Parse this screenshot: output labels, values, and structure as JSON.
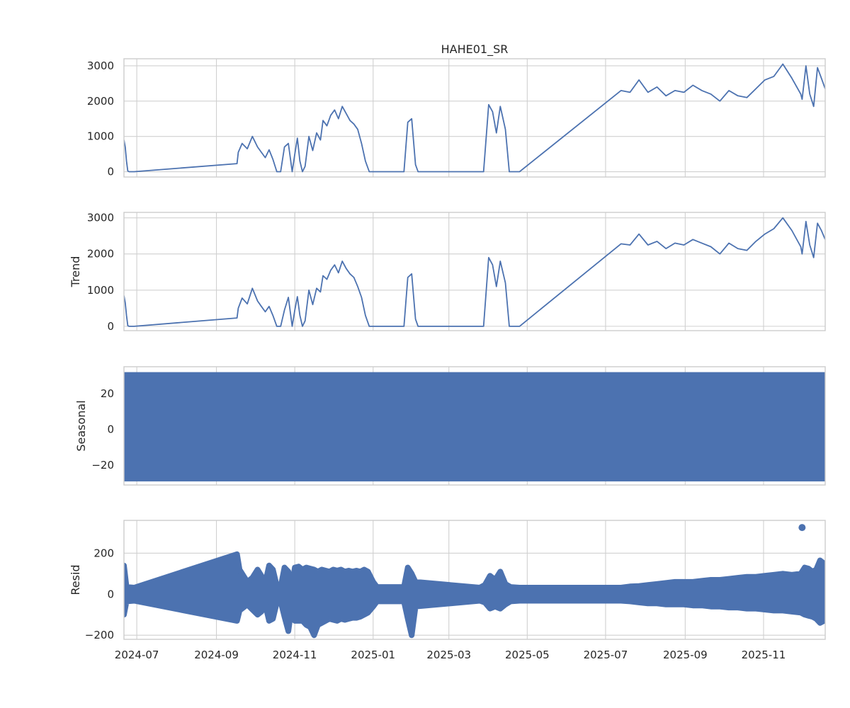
{
  "chart_data": [
    {
      "type": "line",
      "title": "HAHE01_SR",
      "ylabel": "",
      "xlim": [
        "2024-06-21",
        "2025-12-19"
      ],
      "ylim": [
        -150,
        3200
      ],
      "yticks": [
        0,
        1000,
        2000,
        3000
      ],
      "grid": true,
      "color": "#4c72b0",
      "series": [
        {
          "x": [
            "2024-06-21",
            "2024-06-22",
            "2024-06-23",
            "2024-06-24",
            "2024-06-25",
            "2024-06-29",
            "2024-09-17",
            "2024-09-18",
            "2024-09-21",
            "2024-09-25",
            "2024-09-29",
            "2024-10-03",
            "2024-10-06",
            "2024-10-09",
            "2024-10-12",
            "2024-10-15",
            "2024-10-18",
            "2024-10-21",
            "2024-10-24",
            "2024-10-27",
            "2024-10-30",
            "2024-11-01",
            "2024-11-03",
            "2024-11-05",
            "2024-11-07",
            "2024-11-09",
            "2024-11-12",
            "2024-11-15",
            "2024-11-18",
            "2024-11-21",
            "2024-11-23",
            "2024-11-26",
            "2024-11-29",
            "2024-12-02",
            "2024-12-05",
            "2024-12-08",
            "2024-12-11",
            "2024-12-14",
            "2024-12-17",
            "2024-12-20",
            "2024-12-23",
            "2024-12-26",
            "2024-12-29",
            "2025-01-01",
            "2025-01-03",
            "2025-01-05",
            "2025-01-25",
            "2025-01-28",
            "2025-01-31",
            "2025-02-03",
            "2025-02-05",
            "2025-03-25",
            "2025-03-28",
            "2025-04-01",
            "2025-04-04",
            "2025-04-07",
            "2025-04-10",
            "2025-04-14",
            "2025-04-17",
            "2025-04-25",
            "2025-07-13",
            "2025-07-20",
            "2025-07-27",
            "2025-08-03",
            "2025-08-10",
            "2025-08-17",
            "2025-08-24",
            "2025-08-31",
            "2025-09-07",
            "2025-09-14",
            "2025-09-21",
            "2025-09-28",
            "2025-10-05",
            "2025-10-12",
            "2025-10-19",
            "2025-10-26",
            "2025-11-02",
            "2025-11-09",
            "2025-11-16",
            "2025-11-23",
            "2025-11-30",
            "2025-12-01",
            "2025-12-04",
            "2025-12-07",
            "2025-12-10",
            "2025-12-13",
            "2025-12-16",
            "2025-12-19"
          ],
          "y": [
            900,
            700,
            300,
            20,
            0,
            0,
            230,
            550,
            800,
            650,
            1000,
            700,
            550,
            400,
            620,
            350,
            0,
            0,
            700,
            800,
            0,
            500,
            950,
            300,
            0,
            150,
            1000,
            600,
            1100,
            900,
            1450,
            1300,
            1600,
            1750,
            1500,
            1850,
            1650,
            1450,
            1350,
            1200,
            800,
            300,
            0,
            0,
            0,
            0,
            0,
            1400,
            1500,
            200,
            0,
            0,
            0,
            1900,
            1700,
            1100,
            1850,
            1200,
            0,
            0,
            2300,
            2250,
            2600,
            2250,
            2400,
            2150,
            2300,
            2250,
            2450,
            2300,
            2200,
            2000,
            2300,
            2150,
            2100,
            2350,
            2600,
            2700,
            3050,
            2650,
            2200,
            2050,
            3000,
            2200,
            1850,
            2950,
            2650,
            2350
          ]
        }
      ]
    },
    {
      "type": "line",
      "title": "",
      "ylabel": "Trend",
      "xlim": [
        "2024-06-21",
        "2025-12-19"
      ],
      "ylim": [
        -120,
        3150
      ],
      "yticks": [
        0,
        1000,
        2000,
        3000
      ],
      "grid": true,
      "color": "#4c72b0",
      "series": [
        {
          "x": [
            "2024-06-21",
            "2024-06-22",
            "2024-06-23",
            "2024-06-24",
            "2024-06-25",
            "2024-06-29",
            "2024-09-17",
            "2024-09-18",
            "2024-09-21",
            "2024-09-25",
            "2024-09-29",
            "2024-10-03",
            "2024-10-06",
            "2024-10-09",
            "2024-10-12",
            "2024-10-15",
            "2024-10-18",
            "2024-10-21",
            "2024-10-24",
            "2024-10-27",
            "2024-10-30",
            "2024-11-01",
            "2024-11-03",
            "2024-11-05",
            "2024-11-07",
            "2024-11-09",
            "2024-11-12",
            "2024-11-15",
            "2024-11-18",
            "2024-11-21",
            "2024-11-23",
            "2024-11-26",
            "2024-11-29",
            "2024-12-02",
            "2024-12-05",
            "2024-12-08",
            "2024-12-11",
            "2024-12-14",
            "2024-12-17",
            "2024-12-20",
            "2024-12-23",
            "2024-12-26",
            "2024-12-29",
            "2025-01-01",
            "2025-01-03",
            "2025-01-05",
            "2025-01-25",
            "2025-01-28",
            "2025-01-31",
            "2025-02-03",
            "2025-02-05",
            "2025-03-25",
            "2025-03-28",
            "2025-04-01",
            "2025-04-04",
            "2025-04-07",
            "2025-04-10",
            "2025-04-14",
            "2025-04-17",
            "2025-04-25",
            "2025-07-13",
            "2025-07-20",
            "2025-07-27",
            "2025-08-03",
            "2025-08-10",
            "2025-08-17",
            "2025-08-24",
            "2025-08-31",
            "2025-09-07",
            "2025-09-14",
            "2025-09-21",
            "2025-09-28",
            "2025-10-05",
            "2025-10-12",
            "2025-10-19",
            "2025-10-26",
            "2025-11-02",
            "2025-11-09",
            "2025-11-16",
            "2025-11-23",
            "2025-11-30",
            "2025-12-01",
            "2025-12-04",
            "2025-12-07",
            "2025-12-10",
            "2025-12-13",
            "2025-12-16",
            "2025-12-19"
          ],
          "y": [
            850,
            650,
            300,
            20,
            0,
            0,
            230,
            500,
            780,
            620,
            1050,
            700,
            550,
            400,
            550,
            300,
            0,
            0,
            450,
            800,
            0,
            450,
            820,
            300,
            0,
            150,
            1000,
            600,
            1050,
            950,
            1400,
            1300,
            1550,
            1700,
            1480,
            1800,
            1600,
            1450,
            1350,
            1100,
            800,
            300,
            0,
            0,
            0,
            0,
            0,
            1350,
            1450,
            200,
            0,
            0,
            0,
            1900,
            1700,
            1100,
            1800,
            1200,
            0,
            0,
            2280,
            2250,
            2550,
            2250,
            2350,
            2150,
            2300,
            2250,
            2400,
            2300,
            2200,
            2000,
            2300,
            2150,
            2100,
            2350,
            2550,
            2700,
            3000,
            2650,
            2200,
            2000,
            2900,
            2250,
            1900,
            2850,
            2650,
            2400
          ]
        }
      ]
    },
    {
      "type": "area",
      "title": "",
      "ylabel": "Seasonal",
      "xlim": [
        "2024-06-21",
        "2025-12-19"
      ],
      "ylim": [
        -31,
        35
      ],
      "yticks": [
        -20,
        0,
        20
      ],
      "grid": true,
      "color": "#4c72b0",
      "series": [
        {
          "x": [
            "2024-06-21",
            "2025-12-19"
          ],
          "max": 32,
          "min": -29
        }
      ]
    },
    {
      "type": "scatter",
      "title": "",
      "ylabel": "Resid",
      "xlim": [
        "2024-06-21",
        "2025-12-19"
      ],
      "ylim": [
        -220,
        360
      ],
      "yticks": [
        -200,
        0,
        200
      ],
      "xticks": [
        "2024-07",
        "2024-09",
        "2024-11",
        "2025-01",
        "2025-03",
        "2025-05",
        "2025-07",
        "2025-09",
        "2025-11"
      ],
      "grid": true,
      "color": "#4c72b0",
      "series": [
        {
          "x": [
            "2024-06-21",
            "2024-06-23",
            "2024-06-29",
            "2024-09-17",
            "2024-09-19",
            "2024-09-25",
            "2024-09-29",
            "2024-10-03",
            "2024-10-06",
            "2024-10-09",
            "2024-10-12",
            "2024-10-15",
            "2024-10-18",
            "2024-10-21",
            "2024-10-24",
            "2024-10-27",
            "2024-10-30",
            "2024-11-01",
            "2024-11-04",
            "2024-11-07",
            "2024-11-10",
            "2024-11-13",
            "2024-11-16",
            "2024-11-19",
            "2024-11-22",
            "2024-11-25",
            "2024-11-28",
            "2024-12-01",
            "2024-12-04",
            "2024-12-07",
            "2024-12-10",
            "2024-12-13",
            "2024-12-16",
            "2024-12-19",
            "2024-12-22",
            "2024-12-25",
            "2024-12-28",
            "2025-01-01",
            "2025-01-04",
            "2025-01-25",
            "2025-01-28",
            "2025-01-31",
            "2025-02-03",
            "2025-03-25",
            "2025-03-29",
            "2025-04-02",
            "2025-04-06",
            "2025-04-10",
            "2025-04-14",
            "2025-04-18",
            "2025-04-25",
            "2025-07-13",
            "2025-07-20",
            "2025-07-27",
            "2025-08-03",
            "2025-08-10",
            "2025-08-17",
            "2025-08-24",
            "2025-08-31",
            "2025-09-07",
            "2025-09-14",
            "2025-09-21",
            "2025-09-28",
            "2025-10-05",
            "2025-10-12",
            "2025-10-19",
            "2025-10-26",
            "2025-11-02",
            "2025-11-09",
            "2025-11-16",
            "2025-11-23",
            "2025-11-30",
            "2025-12-03",
            "2025-12-06",
            "2025-12-09",
            "2025-12-12",
            "2025-12-15",
            "2025-12-18"
          ],
          "max": [
            140,
            35,
            32,
            195,
            120,
            60,
            80,
            120,
            90,
            55,
            140,
            120,
            40,
            35,
            130,
            110,
            40,
            130,
            135,
            120,
            130,
            125,
            120,
            110,
            120,
            115,
            110,
            120,
            115,
            120,
            110,
            115,
            110,
            115,
            110,
            120,
            110,
            60,
            35,
            35,
            130,
            100,
            60,
            32,
            45,
            90,
            70,
            110,
            50,
            35,
            32,
            32,
            38,
            40,
            45,
            50,
            55,
            60,
            60,
            60,
            65,
            70,
            70,
            75,
            80,
            85,
            85,
            90,
            95,
            100,
            95,
            100,
            130,
            125,
            110,
            120,
            165,
            150
          ],
          "min": [
            -100,
            -35,
            -32,
            -130,
            -80,
            -50,
            -75,
            -100,
            -85,
            -50,
            -130,
            -120,
            -40,
            -35,
            -110,
            -180,
            -40,
            -130,
            -130,
            -130,
            -150,
            -160,
            -200,
            -150,
            -140,
            -130,
            -120,
            -125,
            -130,
            -120,
            -125,
            -120,
            -115,
            -115,
            -110,
            -100,
            -90,
            -60,
            -35,
            -35,
            -120,
            -200,
            -60,
            -32,
            -40,
            -70,
            -60,
            -70,
            -50,
            -35,
            -32,
            -32,
            -35,
            -40,
            -45,
            -45,
            -50,
            -50,
            -50,
            -55,
            -55,
            -60,
            -60,
            -65,
            -65,
            -70,
            -70,
            -75,
            -80,
            -80,
            -85,
            -90,
            -100,
            -105,
            -110,
            -120,
            -140,
            -130
          ],
          "outliers": [
            {
              "x": "2025-12-01",
              "y": 325
            }
          ]
        }
      ]
    }
  ]
}
